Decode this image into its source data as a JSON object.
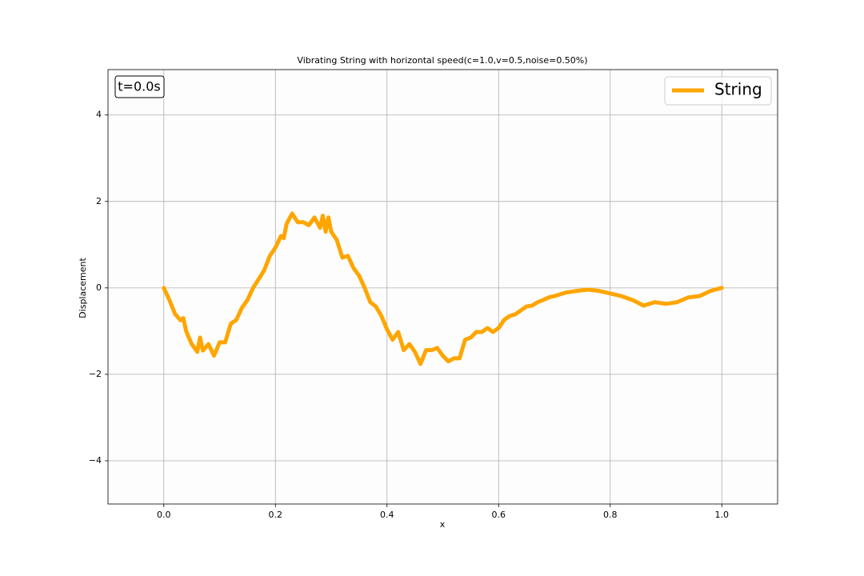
{
  "chart_data": {
    "type": "line",
    "title": "Vibrating String with horizontal speed(c=1.0,v=0.5,noise=0.50%)",
    "x_label": "x",
    "y_label": "Displacement",
    "annotation": "t=0.0s",
    "x": [
      0,
      0.01,
      0.02,
      0.03,
      0.035,
      0.04,
      0.05,
      0.06,
      0.065,
      0.07,
      0.08,
      0.09,
      0.1,
      0.11,
      0.12,
      0.13,
      0.14,
      0.15,
      0.16,
      0.17,
      0.18,
      0.19,
      0.2,
      0.21,
      0.215,
      0.22,
      0.23,
      0.24,
      0.25,
      0.26,
      0.27,
      0.28,
      0.285,
      0.29,
      0.295,
      0.3,
      0.31,
      0.32,
      0.33,
      0.34,
      0.35,
      0.36,
      0.37,
      0.38,
      0.39,
      0.4,
      0.41,
      0.42,
      0.43,
      0.44,
      0.45,
      0.46,
      0.47,
      0.48,
      0.49,
      0.5,
      0.51,
      0.52,
      0.53,
      0.54,
      0.55,
      0.56,
      0.57,
      0.58,
      0.59,
      0.6,
      0.61,
      0.62,
      0.63,
      0.64,
      0.65,
      0.66,
      0.67,
      0.68,
      0.69,
      0.7,
      0.72,
      0.74,
      0.76,
      0.78,
      0.8,
      0.82,
      0.84,
      0.86,
      0.88,
      0.9,
      0.92,
      0.94,
      0.96,
      0.98,
      1.0
    ],
    "series": [
      {
        "name": "String",
        "color": "#ffa500",
        "values": [
          0,
          -0.28,
          -0.6,
          -0.75,
          -0.7,
          -1.0,
          -1.3,
          -1.48,
          -1.15,
          -1.45,
          -1.3,
          -1.57,
          -1.26,
          -1.26,
          -0.83,
          -0.74,
          -0.46,
          -0.28,
          0,
          0.2,
          0.41,
          0.74,
          0.93,
          1.2,
          1.15,
          1.48,
          1.72,
          1.52,
          1.52,
          1.45,
          1.63,
          1.39,
          1.67,
          1.3,
          1.63,
          1.3,
          1.11,
          0.7,
          0.74,
          0.46,
          0.28,
          0,
          -0.33,
          -0.43,
          -0.65,
          -0.96,
          -1.2,
          -1.02,
          -1.44,
          -1.3,
          -1.48,
          -1.76,
          -1.44,
          -1.44,
          -1.39,
          -1.57,
          -1.7,
          -1.63,
          -1.63,
          -1.2,
          -1.15,
          -1.02,
          -1.02,
          -0.93,
          -1.02,
          -0.93,
          -0.74,
          -0.65,
          -0.61,
          -0.52,
          -0.43,
          -0.41,
          -0.33,
          -0.28,
          -0.22,
          -0.19,
          -0.11,
          -0.07,
          -0.04,
          -0.07,
          -0.13,
          -0.19,
          -0.28,
          -0.41,
          -0.33,
          -0.37,
          -0.33,
          -0.22,
          -0.19,
          -0.07,
          0
        ]
      }
    ],
    "xlim": [
      -0.1,
      1.1
    ],
    "ylim": [
      -5,
      5.05
    ],
    "xticks": [
      {
        "value": 0,
        "label": "0.0"
      },
      {
        "value": 0.2,
        "label": "0.2"
      },
      {
        "value": 0.4,
        "label": "0.4"
      },
      {
        "value": 0.6,
        "label": "0.6"
      },
      {
        "value": 0.8,
        "label": "0.8"
      },
      {
        "value": 1.0,
        "label": "1.0"
      }
    ],
    "yticks": [
      {
        "value": -4,
        "label": "−4"
      },
      {
        "value": -2,
        "label": "−2"
      },
      0,
      2,
      4
    ],
    "grid": true,
    "legend": "upper right"
  }
}
